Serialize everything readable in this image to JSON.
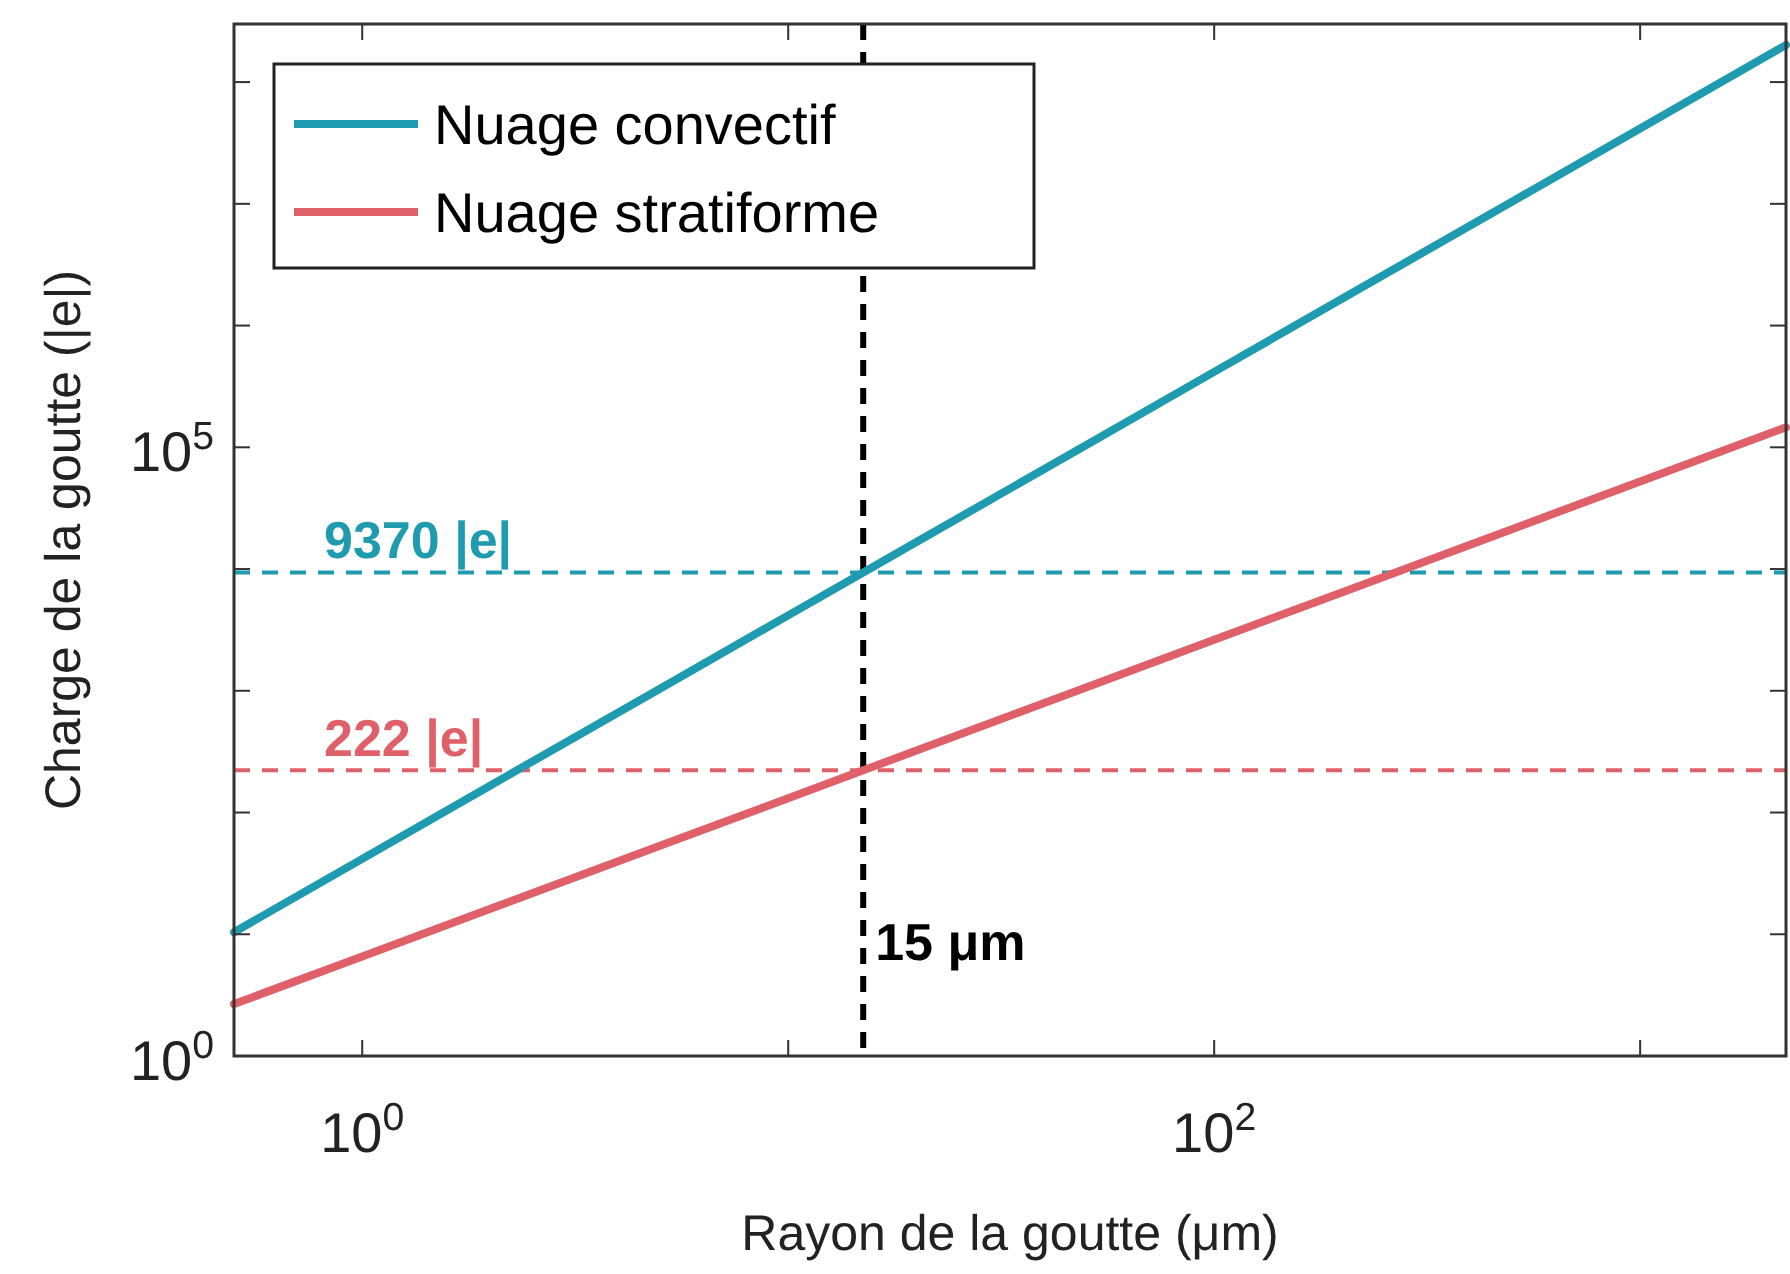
{
  "chart_data": {
    "type": "line",
    "xlabel": "Rayon de la goutte (μm)",
    "ylabel": "Charge de la goutte (|e|)",
    "log": "xy",
    "xlim": [
      0.5,
      2200
    ],
    "ylim": [
      1,
      300000000
    ],
    "xticks": [
      {
        "value": 1,
        "label": "10$^{0}$"
      },
      {
        "value": 10,
        "label": null
      },
      {
        "value": 100,
        "label": "10$^{2}$"
      },
      {
        "value": 1000,
        "label": null
      }
    ],
    "yticks": [
      {
        "value": 1,
        "label": "10$^{0}$"
      },
      {
        "value": 10,
        "label": null
      },
      {
        "value": 100,
        "label": null
      },
      {
        "value": 1000,
        "label": null
      },
      {
        "value": 10000,
        "label": null
      },
      {
        "value": 100000,
        "label": "10$^{5}$"
      },
      {
        "value": 1000000,
        "label": null
      },
      {
        "value": 10000000,
        "label": null
      },
      {
        "value": 100000000,
        "label": null
      }
    ],
    "grid": false,
    "legend": "top left",
    "line_style": "solid",
    "series": [
      {
        "name": "Nuage convectif",
        "color": "#1f9bb0",
        "x": [
          0.5,
          1,
          2,
          5,
          10,
          15,
          20,
          50,
          100,
          200,
          500,
          1000,
          2200
        ],
        "values": [
          10.4,
          41.6,
          167,
          1041,
          4164,
          9370,
          16660,
          104100,
          416400,
          1666000,
          10400000,
          41600000,
          202000000
        ]
      },
      {
        "name": "Nuage stratiforme",
        "color": "#e0606a",
        "x": [
          0.5,
          1,
          2,
          5,
          10,
          15,
          20,
          50,
          100,
          200,
          500,
          1000,
          2200
        ],
        "values": [
          2.67,
          6.58,
          16.2,
          53.3,
          131,
          222,
          323,
          1063,
          2620,
          6460,
          21270,
          52300,
          145800
        ]
      }
    ],
    "ref_lines": [
      {
        "axis": "y",
        "value": 9370,
        "label": "9370 |e|",
        "color": "#1f9bb0",
        "line_style": "dashed"
      },
      {
        "axis": "y",
        "value": 222,
        "label": "222 |e|",
        "color": "#e0606a",
        "line_style": "dashed"
      },
      {
        "axis": "x",
        "value": 15,
        "label": "15 μm",
        "color": "#000000",
        "line_style": "dashed"
      }
    ]
  }
}
